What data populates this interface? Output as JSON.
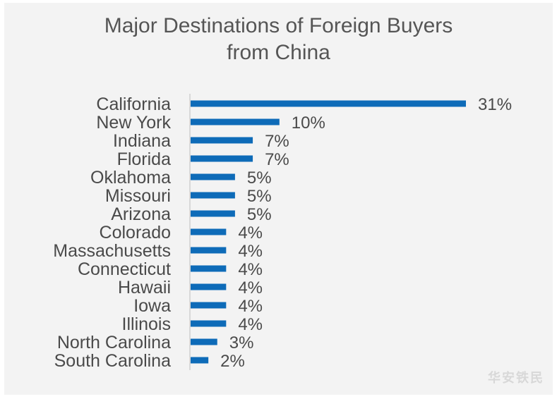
{
  "chart_data": {
    "type": "bar",
    "orientation": "horizontal",
    "title": "Major Destinations of Foreign Buyers from China",
    "title_lines": [
      "Major Destinations of Foreign Buyers",
      "from China"
    ],
    "categories": [
      "California",
      "New York",
      "Indiana",
      "Florida",
      "Oklahoma",
      "Missouri",
      "Arizona",
      "Colorado",
      "Massachusetts",
      "Connecticut",
      "Hawaii",
      "Iowa",
      "Illinois",
      "North Carolina",
      "South Carolina"
    ],
    "values": [
      31,
      10,
      7,
      7,
      5,
      5,
      5,
      4,
      4,
      4,
      4,
      4,
      4,
      3,
      2
    ],
    "value_labels": [
      "31%",
      "10%",
      "7%",
      "7%",
      "5%",
      "5%",
      "5%",
      "4%",
      "4%",
      "4%",
      "4%",
      "4%",
      "4%",
      "3%",
      "2%"
    ],
    "unit": "%",
    "xlim": [
      0,
      31
    ],
    "grid": false,
    "legend": "none",
    "bar_color": "#0e6bb8",
    "axis_color": "#d0d0d0"
  },
  "watermark": "华安铁民"
}
